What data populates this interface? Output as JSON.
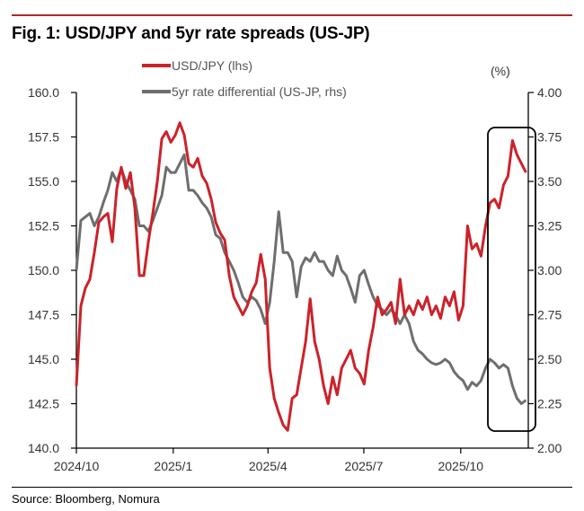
{
  "title": "Fig. 1: USD/JPY and 5yr rate spreads (US-JP)",
  "source": "Source: Bloomberg, Nomura",
  "chart_data": {
    "type": "line",
    "title": "Fig. 1: USD/JPY and 5yr rate spreads (US-JP)",
    "start_date": "2024-10-01",
    "step_days": 4.27,
    "x_ticks": [
      {
        "label": "2024/10",
        "day": 0
      },
      {
        "label": "2025/1",
        "day": 92
      },
      {
        "label": "2025/4",
        "day": 182
      },
      {
        "label": "2025/7",
        "day": 273
      },
      {
        "label": "2025/10",
        "day": 365
      }
    ],
    "xlim_days": [
      0,
      430
    ],
    "left_axis": {
      "ylim": [
        140,
        160
      ],
      "ticks": [
        "140.0",
        "142.5",
        "145.0",
        "147.5",
        "150.0",
        "152.5",
        "155.0",
        "157.5",
        "160.0"
      ]
    },
    "right_axis": {
      "unit_label": "(%)",
      "ylim": [
        2.0,
        4.0
      ],
      "ticks": [
        "2.00",
        "2.25",
        "2.50",
        "2.75",
        "3.00",
        "3.25",
        "3.50",
        "3.75",
        "4.00"
      ]
    },
    "series": [
      {
        "name": "USD/JPY (lhs)",
        "axis": "left",
        "color": "#cc2229",
        "values": [
          143.5,
          148.0,
          149.0,
          149.5,
          151.0,
          152.7,
          153.0,
          153.2,
          151.6,
          154.6,
          155.8,
          154.6,
          155.5,
          153.5,
          149.7,
          149.7,
          151.6,
          153.2,
          155.0,
          157.4,
          157.8,
          157.2,
          157.6,
          158.3,
          157.6,
          156.0,
          155.8,
          156.3,
          155.3,
          154.9,
          154.0,
          152.7,
          152.1,
          151.7,
          149.7,
          148.5,
          148.0,
          147.5,
          148.0,
          148.8,
          149.3,
          150.9,
          149.5,
          144.5,
          142.8,
          142.0,
          141.3,
          141.0,
          142.8,
          143.0,
          144.5,
          146.0,
          148.4,
          146.0,
          145.0,
          143.5,
          142.5,
          144.0,
          143.0,
          144.5,
          145.0,
          145.5,
          144.5,
          144.2,
          143.6,
          145.5,
          146.8,
          148.5,
          147.5,
          147.8,
          148.2,
          147.0,
          149.5,
          147.5,
          148.0,
          147.5,
          148.3,
          147.8,
          148.5,
          147.5,
          148.0,
          147.3,
          148.5,
          148.0,
          148.8,
          147.2,
          148.0,
          152.5,
          151.2,
          151.5,
          150.8,
          152.5,
          153.8,
          154.0,
          153.5,
          154.8,
          155.3,
          157.3,
          156.5,
          156.0,
          155.5
        ]
      },
      {
        "name": "5yr rate differential (US-JP, rhs)",
        "axis": "right",
        "color": "#6e6e6e",
        "values": [
          3.0,
          3.28,
          3.3,
          3.32,
          3.25,
          3.3,
          3.38,
          3.45,
          3.55,
          3.5,
          3.57,
          3.5,
          3.45,
          3.4,
          3.25,
          3.25,
          3.22,
          3.28,
          3.35,
          3.42,
          3.58,
          3.55,
          3.55,
          3.6,
          3.65,
          3.45,
          3.45,
          3.42,
          3.38,
          3.35,
          3.3,
          3.2,
          3.18,
          3.1,
          3.05,
          3.0,
          2.93,
          2.85,
          2.82,
          2.85,
          2.83,
          2.78,
          2.7,
          2.82,
          3.05,
          3.33,
          3.1,
          3.1,
          3.05,
          2.85,
          3.02,
          3.07,
          3.05,
          3.1,
          3.05,
          3.05,
          3.0,
          2.97,
          3.08,
          3.0,
          2.97,
          2.9,
          2.82,
          2.97,
          3.0,
          2.92,
          2.85,
          2.8,
          2.78,
          2.75,
          2.78,
          2.75,
          2.7,
          2.75,
          2.7,
          2.6,
          2.55,
          2.53,
          2.5,
          2.48,
          2.47,
          2.48,
          2.5,
          2.48,
          2.43,
          2.4,
          2.38,
          2.33,
          2.37,
          2.35,
          2.38,
          2.45,
          2.5,
          2.48,
          2.45,
          2.47,
          2.45,
          2.35,
          2.28,
          2.25,
          2.27
        ]
      }
    ],
    "legend_position": "top-center",
    "grid": false,
    "annotation": "highlight box around latest period (2025/11 onward)"
  }
}
